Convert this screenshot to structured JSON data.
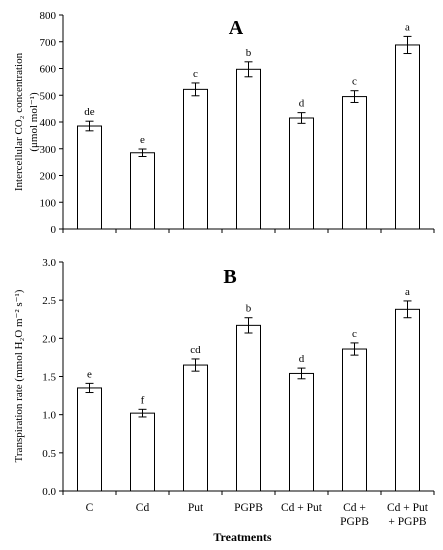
{
  "chart_data": [
    {
      "type": "bar",
      "panel_label": "A",
      "ylabel": "Intercellular CO₂ concentration (μmol mol⁻¹)",
      "ylabel_lines": [
        "Intercellular CO₂ concentration",
        "(μmol mol⁻¹)"
      ],
      "ylim": [
        0,
        800
      ],
      "yticks": [
        "0",
        "100",
        "200",
        "300",
        "400",
        "500",
        "600",
        "700",
        "800"
      ],
      "categories": [
        "C",
        "Cd",
        "Put",
        "PGPB",
        "Cd + Put",
        "Cd + PGPB",
        "Cd + Put + PGPB"
      ],
      "values": [
        385,
        285,
        522,
        597,
        415,
        495,
        688
      ],
      "errors": [
        18,
        14,
        24,
        28,
        20,
        22,
        32
      ],
      "letters": [
        "de",
        "e",
        "c",
        "b",
        "d",
        "c",
        "a"
      ],
      "grid": false,
      "legend": "none"
    },
    {
      "type": "bar",
      "panel_label": "B",
      "ylabel": "Transpiration rate (mmol H₂O m⁻² s⁻¹)",
      "ylabel_lines": [
        "Transpiration rate (mmol H₂O m⁻² s⁻¹)"
      ],
      "xlabel": "Treatments",
      "ylim": [
        0,
        3.0
      ],
      "yticks": [
        "0.0",
        "0.5",
        "1.0",
        "1.5",
        "2.0",
        "2.5",
        "3.0"
      ],
      "categories": [
        "C",
        "Cd",
        "Put",
        "PGPB",
        "Cd + Put",
        "Cd + PGPB",
        "Cd + Put + PGPB"
      ],
      "category_lines": [
        [
          "C"
        ],
        [
          "Cd"
        ],
        [
          "Put"
        ],
        [
          "PGPB"
        ],
        [
          "Cd + Put"
        ],
        [
          "Cd +",
          "PGPB"
        ],
        [
          "Cd + Put",
          "+ PGPB"
        ]
      ],
      "values": [
        1.35,
        1.02,
        1.65,
        2.17,
        1.54,
        1.86,
        2.38
      ],
      "errors": [
        0.06,
        0.05,
        0.08,
        0.1,
        0.07,
        0.08,
        0.11
      ],
      "letters": [
        "e",
        "f",
        "cd",
        "b",
        "d",
        "c",
        "a"
      ],
      "grid": false,
      "legend": "none"
    }
  ]
}
